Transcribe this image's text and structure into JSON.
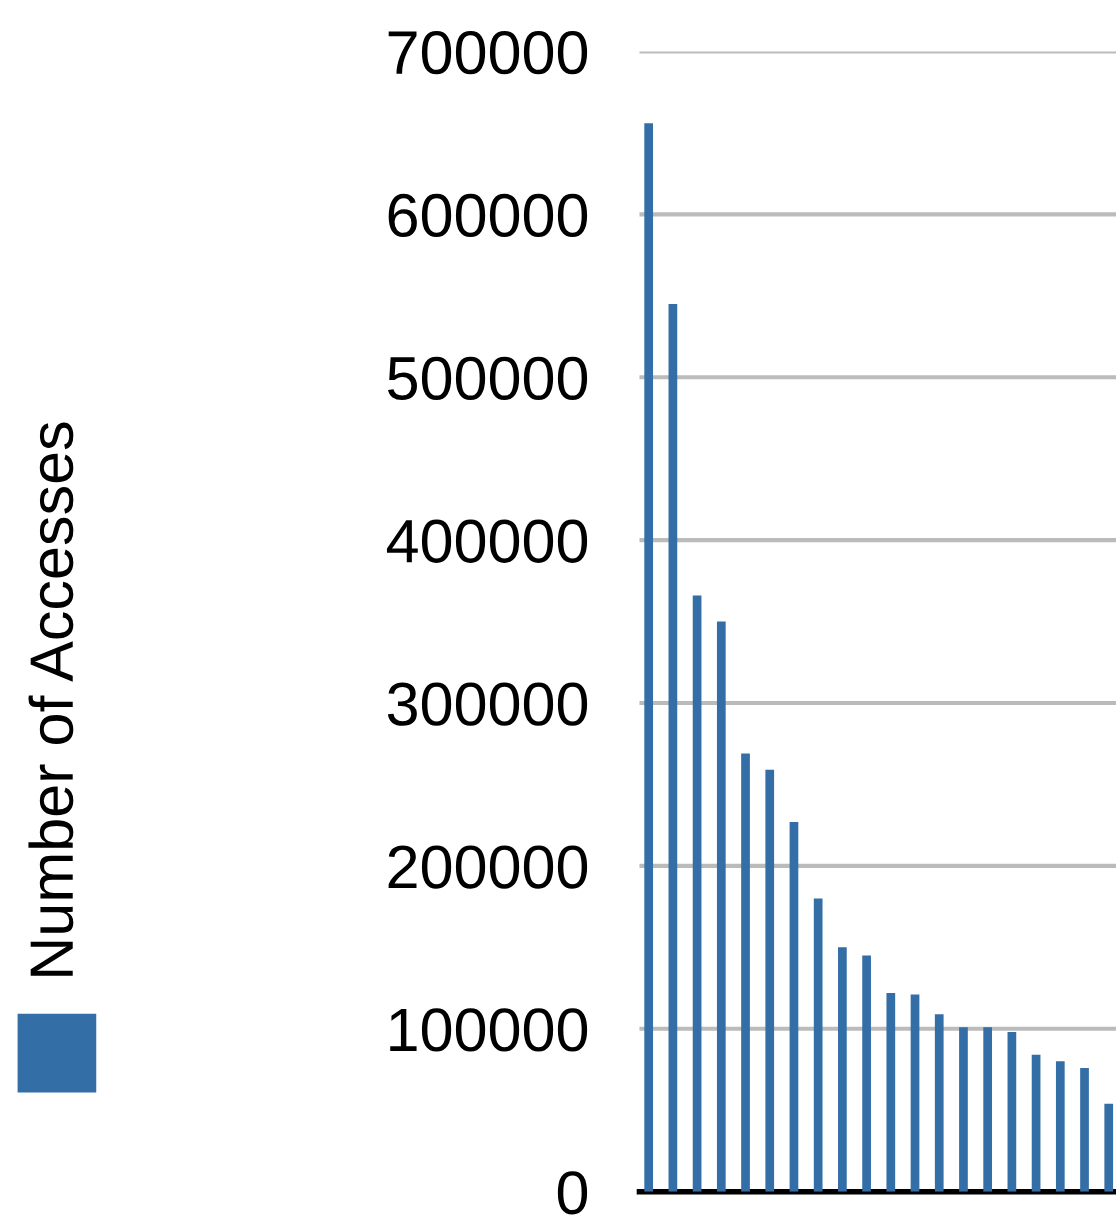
{
  "chart_data": {
    "type": "bar",
    "ylabel": null,
    "categories": [
      null,
      null,
      null,
      null,
      null,
      null,
      null,
      null,
      null,
      null,
      null,
      null,
      null,
      null,
      null,
      null,
      null,
      null,
      null,
      null
    ],
    "series": [
      {
        "name": "Number of Accesses",
        "color": "#336ea6",
        "values": [
          656000,
          545000,
          366000,
          350000,
          269000,
          259000,
          227000,
          180000,
          150000,
          145000,
          122000,
          121000,
          109000,
          101000,
          101000,
          98000,
          84000,
          80000,
          76000,
          54000
        ]
      }
    ],
    "ylim": [
      0,
      700000
    ],
    "yticks": [
      0,
      100000,
      200000,
      300000,
      400000,
      500000,
      600000,
      700000
    ],
    "grid": "y",
    "legend": "left"
  }
}
